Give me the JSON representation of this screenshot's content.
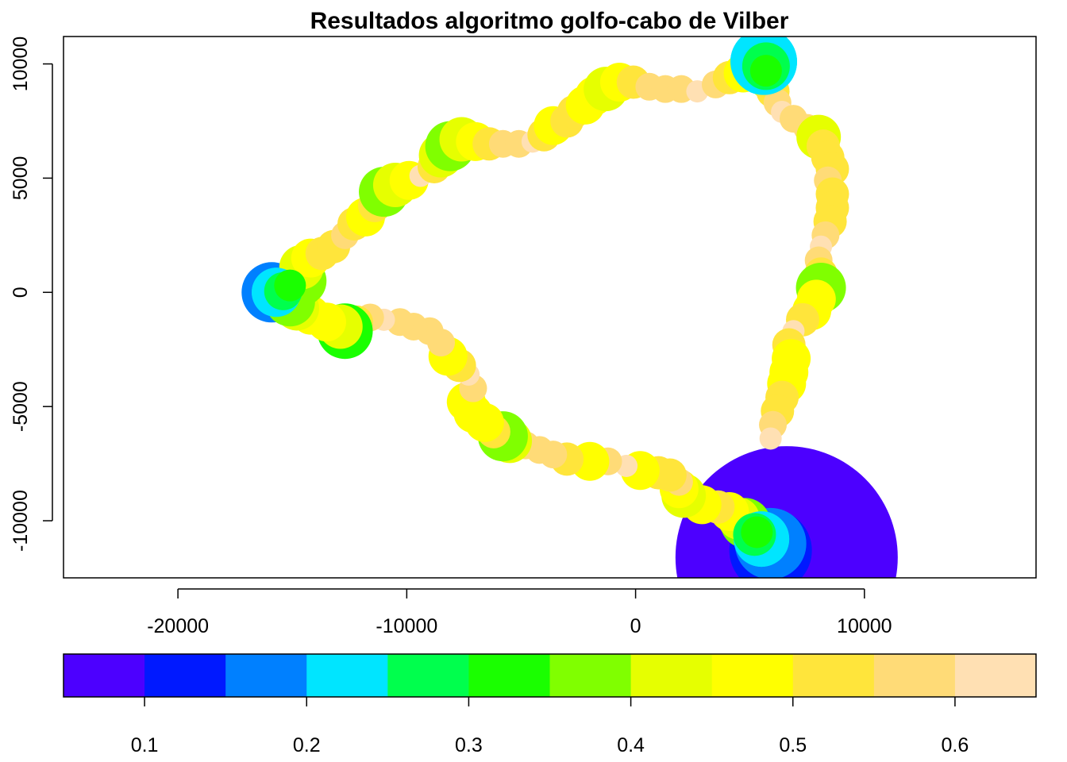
{
  "chart_data": {
    "type": "scatter",
    "title": "Resultados algoritmo golfo-cabo de Vilber",
    "xlabel": "",
    "ylabel": "",
    "xlim": [
      -25000,
      17500
    ],
    "ylim": [
      -12500,
      11200
    ],
    "xticks": [
      -20000,
      -10000,
      0,
      10000
    ],
    "xtick_labels": [
      "-20000",
      "-10000",
      "0",
      "10000"
    ],
    "yticks": [
      -10000,
      -5000,
      0,
      5000,
      10000
    ],
    "ytick_labels": [
      "-10000",
      "-5000",
      "0",
      "5000",
      "10000"
    ],
    "grid": false,
    "legend": "colorbar-bottom",
    "colorbar": {
      "range": [
        0.05,
        0.65
      ],
      "breaks": [
        0.05,
        0.1,
        0.15,
        0.2,
        0.25,
        0.3,
        0.35,
        0.4,
        0.45,
        0.5,
        0.55,
        0.6,
        0.65
      ],
      "colors": [
        "#4c00ff",
        "#0019ff",
        "#0080ff",
        "#00e5ff",
        "#00ff4d",
        "#1aff00",
        "#80ff00",
        "#e6ff00",
        "#ffff00",
        "#ffe53b",
        "#ffdb77",
        "#ffe0b3"
      ],
      "tick_values": [
        0.1,
        0.2,
        0.3,
        0.4,
        0.5,
        0.6
      ],
      "tick_labels": [
        "0.1",
        "0.2",
        "0.3",
        "0.4",
        "0.5",
        "0.6"
      ]
    },
    "highlight_markers": [
      {
        "x": 6600,
        "y": -11600,
        "value": 0.08
      },
      {
        "x": 5900,
        "y": -11300,
        "value": 0.12
      },
      {
        "x": 5900,
        "y": -11000,
        "value": 0.17
      },
      {
        "x": 5500,
        "y": -10800,
        "value": 0.22
      },
      {
        "x": 5200,
        "y": -10600,
        "value": 0.27
      },
      {
        "x": 5300,
        "y": -10500,
        "value": 0.32
      },
      {
        "x": 5600,
        "y": 10100,
        "value": 0.22
      },
      {
        "x": 5700,
        "y": 9900,
        "value": 0.27
      },
      {
        "x": 5700,
        "y": 9700,
        "value": 0.32
      },
      {
        "x": -15900,
        "y": 0,
        "value": 0.17
      },
      {
        "x": -15700,
        "y": 0,
        "value": 0.22
      },
      {
        "x": -15400,
        "y": 50,
        "value": 0.27
      },
      {
        "x": -15100,
        "y": 300,
        "value": 0.32
      }
    ],
    "points": [
      {
        "x": 4800,
        "y": -10100,
        "value": 0.35
      },
      {
        "x": 4500,
        "y": -9900,
        "value": 0.42
      },
      {
        "x": 4100,
        "y": -9600,
        "value": 0.45
      },
      {
        "x": 3600,
        "y": -9400,
        "value": 0.5
      },
      {
        "x": 2900,
        "y": -9300,
        "value": 0.45
      },
      {
        "x": 2100,
        "y": -8900,
        "value": 0.4
      },
      {
        "x": 1900,
        "y": -8600,
        "value": 0.45
      },
      {
        "x": 1900,
        "y": -8300,
        "value": 0.55
      },
      {
        "x": 1500,
        "y": -8000,
        "value": 0.5
      },
      {
        "x": 1000,
        "y": -7900,
        "value": 0.5
      },
      {
        "x": 200,
        "y": -7800,
        "value": 0.45
      },
      {
        "x": -400,
        "y": -7600,
        "value": 0.6
      },
      {
        "x": -1200,
        "y": -7400,
        "value": 0.55
      },
      {
        "x": -2000,
        "y": -7400,
        "value": 0.45
      },
      {
        "x": -3000,
        "y": -7300,
        "value": 0.5
      },
      {
        "x": -3600,
        "y": -7100,
        "value": 0.55
      },
      {
        "x": -4200,
        "y": -6900,
        "value": 0.55
      },
      {
        "x": -4800,
        "y": -6700,
        "value": 0.55
      },
      {
        "x": -5500,
        "y": -6500,
        "value": 0.4
      },
      {
        "x": -5800,
        "y": -6300,
        "value": 0.35
      },
      {
        "x": -6200,
        "y": -6100,
        "value": 0.5
      },
      {
        "x": -6600,
        "y": -5700,
        "value": 0.45
      },
      {
        "x": -7100,
        "y": -5300,
        "value": 0.45
      },
      {
        "x": -7400,
        "y": -4800,
        "value": 0.45
      },
      {
        "x": -7100,
        "y": -4200,
        "value": 0.55
      },
      {
        "x": -7300,
        "y": -3600,
        "value": 0.6
      },
      {
        "x": -7700,
        "y": -3200,
        "value": 0.5
      },
      {
        "x": -8200,
        "y": -2800,
        "value": 0.45
      },
      {
        "x": -8500,
        "y": -2200,
        "value": 0.55
      },
      {
        "x": -9000,
        "y": -1700,
        "value": 0.55
      },
      {
        "x": -9700,
        "y": -1500,
        "value": 0.55
      },
      {
        "x": -10300,
        "y": -1300,
        "value": 0.55
      },
      {
        "x": -11000,
        "y": -1200,
        "value": 0.6
      },
      {
        "x": -11600,
        "y": -1100,
        "value": 0.55
      },
      {
        "x": -12200,
        "y": -1300,
        "value": 0.5
      },
      {
        "x": -12700,
        "y": -1700,
        "value": 0.3
      },
      {
        "x": -12900,
        "y": -1500,
        "value": 0.4
      },
      {
        "x": -13500,
        "y": -1300,
        "value": 0.45
      },
      {
        "x": -14200,
        "y": -1000,
        "value": 0.45
      },
      {
        "x": -14800,
        "y": -700,
        "value": 0.4
      },
      {
        "x": -15100,
        "y": -400,
        "value": 0.35
      },
      {
        "x": -14600,
        "y": 500,
        "value": 0.35
      },
      {
        "x": -14600,
        "y": 1100,
        "value": 0.4
      },
      {
        "x": -14200,
        "y": 1500,
        "value": 0.45
      },
      {
        "x": -13700,
        "y": 1700,
        "value": 0.5
      },
      {
        "x": -13200,
        "y": 2000,
        "value": 0.5
      },
      {
        "x": -12700,
        "y": 2500,
        "value": 0.55
      },
      {
        "x": -12300,
        "y": 3000,
        "value": 0.5
      },
      {
        "x": -11800,
        "y": 3300,
        "value": 0.45
      },
      {
        "x": -11400,
        "y": 3800,
        "value": 0.5
      },
      {
        "x": -11000,
        "y": 4400,
        "value": 0.35
      },
      {
        "x": -10500,
        "y": 4700,
        "value": 0.4
      },
      {
        "x": -9900,
        "y": 4900,
        "value": 0.45
      },
      {
        "x": -9400,
        "y": 5100,
        "value": 0.6
      },
      {
        "x": -8800,
        "y": 5500,
        "value": 0.5
      },
      {
        "x": -8500,
        "y": 6000,
        "value": 0.4
      },
      {
        "x": -8100,
        "y": 6400,
        "value": 0.35
      },
      {
        "x": -7600,
        "y": 6700,
        "value": 0.4
      },
      {
        "x": -7000,
        "y": 6600,
        "value": 0.45
      },
      {
        "x": -6400,
        "y": 6500,
        "value": 0.5
      },
      {
        "x": -5800,
        "y": 6500,
        "value": 0.55
      },
      {
        "x": -5100,
        "y": 6500,
        "value": 0.55
      },
      {
        "x": -4500,
        "y": 6600,
        "value": 0.6
      },
      {
        "x": -4000,
        "y": 6900,
        "value": 0.5
      },
      {
        "x": -3600,
        "y": 7300,
        "value": 0.45
      },
      {
        "x": -3000,
        "y": 7500,
        "value": 0.5
      },
      {
        "x": -2700,
        "y": 7900,
        "value": 0.5
      },
      {
        "x": -2200,
        "y": 8200,
        "value": 0.45
      },
      {
        "x": -1800,
        "y": 8600,
        "value": 0.45
      },
      {
        "x": -1300,
        "y": 8900,
        "value": 0.4
      },
      {
        "x": -700,
        "y": 9200,
        "value": 0.45
      },
      {
        "x": -100,
        "y": 9200,
        "value": 0.5
      },
      {
        "x": 600,
        "y": 9000,
        "value": 0.55
      },
      {
        "x": 1300,
        "y": 8900,
        "value": 0.55
      },
      {
        "x": 2000,
        "y": 8900,
        "value": 0.55
      },
      {
        "x": 2700,
        "y": 8800,
        "value": 0.6
      },
      {
        "x": 3500,
        "y": 9100,
        "value": 0.55
      },
      {
        "x": 4100,
        "y": 9400,
        "value": 0.5
      },
      {
        "x": 4700,
        "y": 9600,
        "value": 0.45
      },
      {
        "x": 5800,
        "y": 9300,
        "value": 0.45
      },
      {
        "x": 6000,
        "y": 8800,
        "value": 0.5
      },
      {
        "x": 6200,
        "y": 8300,
        "value": 0.55
      },
      {
        "x": 6400,
        "y": 7900,
        "value": 0.6
      },
      {
        "x": 6900,
        "y": 7600,
        "value": 0.55
      },
      {
        "x": 7500,
        "y": 7200,
        "value": 0.55
      },
      {
        "x": 8000,
        "y": 6800,
        "value": 0.4
      },
      {
        "x": 8200,
        "y": 6400,
        "value": 0.5
      },
      {
        "x": 8400,
        "y": 5900,
        "value": 0.5
      },
      {
        "x": 8600,
        "y": 5400,
        "value": 0.5
      },
      {
        "x": 8400,
        "y": 4900,
        "value": 0.55
      },
      {
        "x": 8600,
        "y": 4300,
        "value": 0.5
      },
      {
        "x": 8600,
        "y": 3700,
        "value": 0.5
      },
      {
        "x": 8500,
        "y": 3100,
        "value": 0.5
      },
      {
        "x": 8300,
        "y": 2500,
        "value": 0.55
      },
      {
        "x": 8100,
        "y": 2000,
        "value": 0.6
      },
      {
        "x": 8000,
        "y": 1400,
        "value": 0.55
      },
      {
        "x": 8100,
        "y": 800,
        "value": 0.5
      },
      {
        "x": 8100,
        "y": 200,
        "value": 0.35
      },
      {
        "x": 7900,
        "y": -300,
        "value": 0.45
      },
      {
        "x": 7700,
        "y": -800,
        "value": 0.45
      },
      {
        "x": 7300,
        "y": -1200,
        "value": 0.5
      },
      {
        "x": 6900,
        "y": -1700,
        "value": 0.6
      },
      {
        "x": 6700,
        "y": -2300,
        "value": 0.5
      },
      {
        "x": 6800,
        "y": -2900,
        "value": 0.45
      },
      {
        "x": 6700,
        "y": -3500,
        "value": 0.45
      },
      {
        "x": 6600,
        "y": -4000,
        "value": 0.45
      },
      {
        "x": 6400,
        "y": -4600,
        "value": 0.5
      },
      {
        "x": 6200,
        "y": -5200,
        "value": 0.5
      },
      {
        "x": 6000,
        "y": -5800,
        "value": 0.55
      },
      {
        "x": 5900,
        "y": -6400,
        "value": 0.6
      }
    ]
  }
}
